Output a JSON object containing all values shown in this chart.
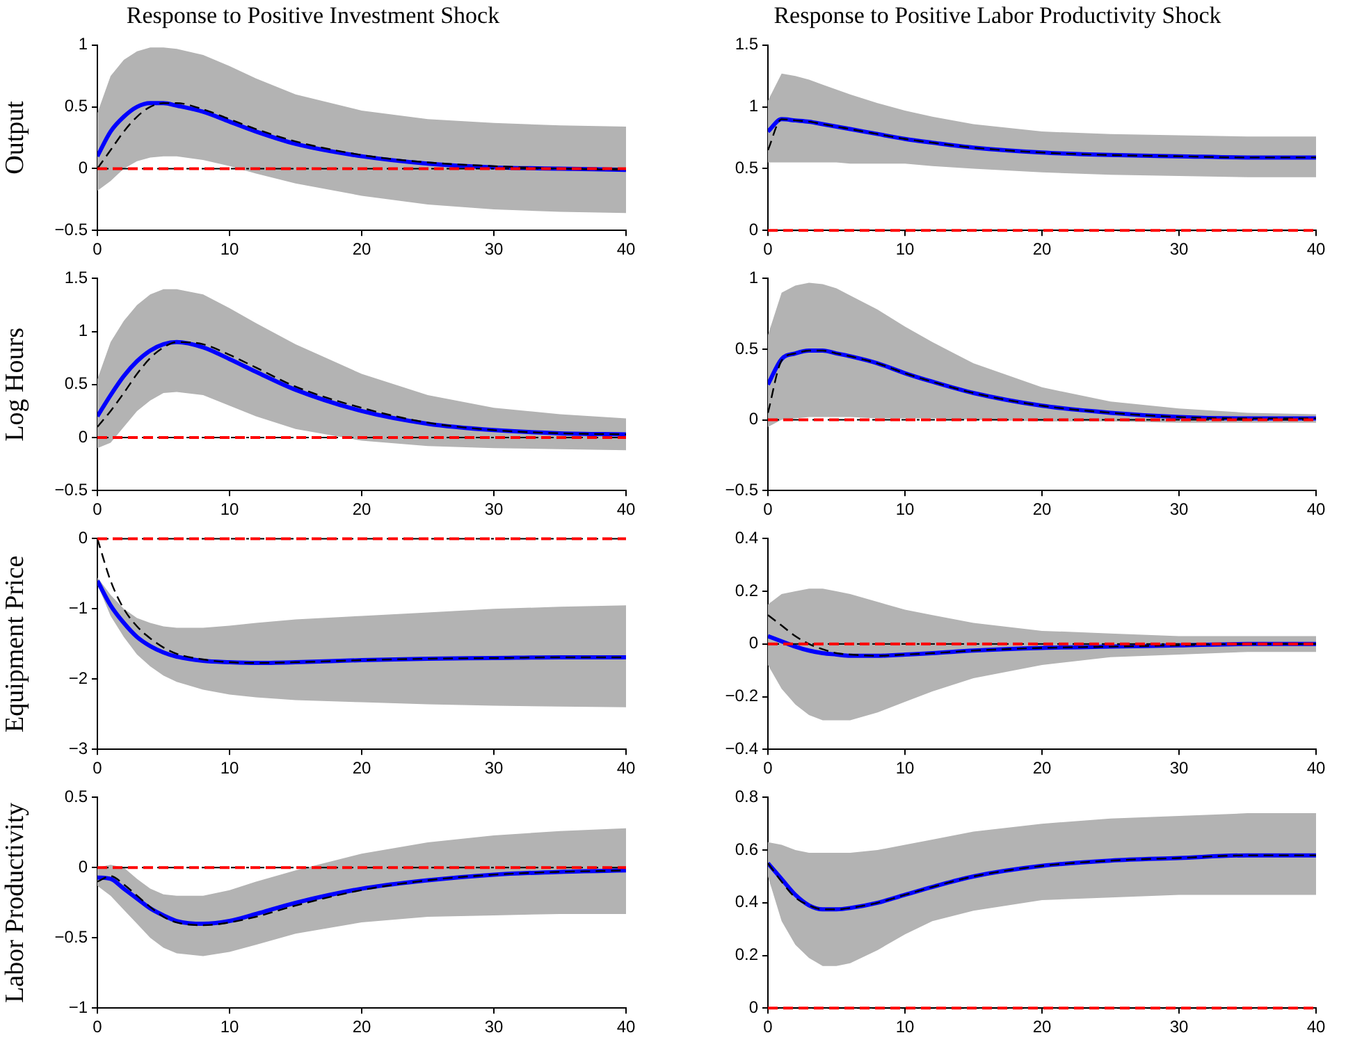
{
  "chart_data": [
    {
      "type": "line",
      "title": "Response to Positive Investment Shock",
      "ylabel": "Output",
      "xlim": [
        0,
        40
      ],
      "xticks": [
        0,
        10,
        20,
        30,
        40
      ],
      "ylim": [
        -0.5,
        1
      ],
      "yticks": [
        -0.5,
        0,
        0.5,
        1
      ],
      "grid": false,
      "legend": false,
      "x": [
        0,
        1,
        2,
        3,
        4,
        5,
        6,
        8,
        10,
        12,
        15,
        20,
        25,
        30,
        35,
        40
      ],
      "series": [
        {
          "color": "#0000ff",
          "values": [
            0.1,
            0.3,
            0.42,
            0.5,
            0.53,
            0.53,
            0.51,
            0.46,
            0.38,
            0.3,
            0.2,
            0.1,
            0.04,
            0.01,
            0.0,
            -0.01
          ],
          "lower": [
            -0.18,
            -0.1,
            0.0,
            0.06,
            0.09,
            0.1,
            0.1,
            0.07,
            0.02,
            -0.04,
            -0.12,
            -0.22,
            -0.29,
            -0.33,
            -0.35,
            -0.36
          ],
          "upper": [
            0.45,
            0.75,
            0.88,
            0.95,
            0.98,
            0.98,
            0.97,
            0.92,
            0.83,
            0.73,
            0.6,
            0.47,
            0.4,
            0.37,
            0.35,
            0.34
          ]
        },
        {
          "color": "#000000",
          "line_style": "dashed",
          "values": [
            0.0,
            0.15,
            0.3,
            0.42,
            0.5,
            0.53,
            0.53,
            0.48,
            0.4,
            0.32,
            0.22,
            0.11,
            0.05,
            0.02,
            0.0,
            -0.01
          ]
        }
      ],
      "ref_lines": [
        {
          "axis": "y",
          "value": 0,
          "color": "#000000",
          "line_style": "dotted"
        },
        {
          "axis": "y",
          "value": 0,
          "color": "#ff0000",
          "line_style": "dashed"
        }
      ]
    },
    {
      "type": "line",
      "title": "Response to Positive Labor Productivity Shock",
      "xlim": [
        0,
        40
      ],
      "xticks": [
        0,
        10,
        20,
        30,
        40
      ],
      "ylim": [
        0,
        1.5
      ],
      "yticks": [
        0,
        0.5,
        1,
        1.5
      ],
      "grid": false,
      "legend": false,
      "x": [
        0,
        1,
        2,
        3,
        4,
        5,
        6,
        8,
        10,
        12,
        15,
        20,
        25,
        30,
        35,
        40
      ],
      "series": [
        {
          "color": "#0000ff",
          "values": [
            0.8,
            0.9,
            0.89,
            0.88,
            0.86,
            0.84,
            0.82,
            0.78,
            0.74,
            0.71,
            0.67,
            0.63,
            0.61,
            0.6,
            0.59,
            0.59
          ],
          "lower": [
            0.55,
            0.55,
            0.55,
            0.55,
            0.55,
            0.55,
            0.54,
            0.54,
            0.54,
            0.52,
            0.5,
            0.47,
            0.45,
            0.44,
            0.43,
            0.43
          ],
          "upper": [
            1.05,
            1.27,
            1.25,
            1.22,
            1.18,
            1.14,
            1.1,
            1.03,
            0.97,
            0.92,
            0.86,
            0.8,
            0.78,
            0.77,
            0.76,
            0.76
          ]
        },
        {
          "color": "#000000",
          "line_style": "dashed",
          "values": [
            0.65,
            0.9,
            0.89,
            0.88,
            0.86,
            0.84,
            0.82,
            0.78,
            0.74,
            0.71,
            0.67,
            0.63,
            0.61,
            0.6,
            0.59,
            0.59
          ]
        }
      ],
      "ref_lines": [
        {
          "axis": "y",
          "value": 0,
          "color": "#000000",
          "line_style": "dotted"
        },
        {
          "axis": "y",
          "value": 0,
          "color": "#ff0000",
          "line_style": "dashed"
        }
      ]
    },
    {
      "type": "line",
      "ylabel": "Log Hours",
      "xlim": [
        0,
        40
      ],
      "xticks": [
        0,
        10,
        20,
        30,
        40
      ],
      "ylim": [
        -0.5,
        1.5
      ],
      "yticks": [
        -0.5,
        0,
        0.5,
        1,
        1.5
      ],
      "grid": false,
      "legend": false,
      "x": [
        0,
        1,
        2,
        3,
        4,
        5,
        6,
        8,
        10,
        12,
        15,
        20,
        25,
        30,
        35,
        40
      ],
      "series": [
        {
          "color": "#0000ff",
          "values": [
            0.2,
            0.4,
            0.58,
            0.72,
            0.82,
            0.88,
            0.9,
            0.85,
            0.74,
            0.62,
            0.45,
            0.25,
            0.13,
            0.07,
            0.04,
            0.03
          ],
          "lower": [
            -0.1,
            -0.05,
            0.1,
            0.25,
            0.35,
            0.42,
            0.43,
            0.4,
            0.3,
            0.2,
            0.08,
            -0.03,
            -0.08,
            -0.1,
            -0.11,
            -0.12
          ],
          "upper": [
            0.55,
            0.9,
            1.1,
            1.25,
            1.35,
            1.4,
            1.4,
            1.35,
            1.22,
            1.08,
            0.88,
            0.6,
            0.4,
            0.28,
            0.22,
            0.18
          ]
        },
        {
          "color": "#000000",
          "line_style": "dashed",
          "values": [
            0.1,
            0.25,
            0.42,
            0.6,
            0.75,
            0.85,
            0.9,
            0.88,
            0.78,
            0.66,
            0.48,
            0.28,
            0.14,
            0.07,
            0.04,
            0.03
          ]
        }
      ],
      "ref_lines": [
        {
          "axis": "y",
          "value": 0,
          "color": "#000000",
          "line_style": "dotted"
        },
        {
          "axis": "y",
          "value": 0,
          "color": "#ff0000",
          "line_style": "dashed"
        }
      ]
    },
    {
      "type": "line",
      "xlim": [
        0,
        40
      ],
      "xticks": [
        0,
        10,
        20,
        30,
        40
      ],
      "ylim": [
        -0.5,
        1
      ],
      "yticks": [
        -0.5,
        0,
        0.5,
        1
      ],
      "grid": false,
      "legend": false,
      "x": [
        0,
        1,
        2,
        3,
        4,
        5,
        6,
        8,
        10,
        12,
        15,
        20,
        25,
        30,
        35,
        40
      ],
      "series": [
        {
          "color": "#0000ff",
          "values": [
            0.25,
            0.43,
            0.47,
            0.49,
            0.49,
            0.47,
            0.45,
            0.4,
            0.33,
            0.27,
            0.19,
            0.1,
            0.05,
            0.02,
            0.01,
            0.01
          ],
          "lower": [
            -0.05,
            0.0,
            0.01,
            0.02,
            0.02,
            0.02,
            0.02,
            0.01,
            0.01,
            0.01,
            0.0,
            -0.01,
            -0.01,
            -0.02,
            -0.02,
            -0.02
          ],
          "upper": [
            0.6,
            0.9,
            0.95,
            0.97,
            0.96,
            0.93,
            0.88,
            0.78,
            0.66,
            0.55,
            0.4,
            0.23,
            0.13,
            0.08,
            0.05,
            0.04
          ]
        },
        {
          "color": "#000000",
          "line_style": "dashed",
          "values": [
            0.05,
            0.42,
            0.47,
            0.49,
            0.49,
            0.47,
            0.45,
            0.4,
            0.33,
            0.27,
            0.19,
            0.1,
            0.05,
            0.02,
            0.01,
            0.01
          ]
        }
      ],
      "ref_lines": [
        {
          "axis": "y",
          "value": 0,
          "color": "#000000",
          "line_style": "dotted"
        },
        {
          "axis": "y",
          "value": 0,
          "color": "#ff0000",
          "line_style": "dashed"
        }
      ]
    },
    {
      "type": "line",
      "ylabel": "Equipment Price",
      "xlim": [
        0,
        40
      ],
      "xticks": [
        0,
        10,
        20,
        30,
        40
      ],
      "ylim": [
        -3,
        0
      ],
      "yticks": [
        -3,
        -2,
        -1,
        0
      ],
      "grid": false,
      "legend": false,
      "x": [
        0,
        1,
        2,
        3,
        4,
        5,
        6,
        8,
        10,
        12,
        15,
        20,
        25,
        30,
        35,
        40
      ],
      "series": [
        {
          "color": "#0000ff",
          "values": [
            -0.6,
            -0.95,
            -1.2,
            -1.4,
            -1.53,
            -1.62,
            -1.68,
            -1.74,
            -1.76,
            -1.77,
            -1.76,
            -1.73,
            -1.71,
            -1.7,
            -1.69,
            -1.69
          ],
          "lower": [
            -0.65,
            -1.1,
            -1.4,
            -1.65,
            -1.82,
            -1.95,
            -2.04,
            -2.15,
            -2.22,
            -2.26,
            -2.3,
            -2.33,
            -2.36,
            -2.38,
            -2.39,
            -2.4
          ],
          "upper": [
            -0.55,
            -0.8,
            -1.0,
            -1.13,
            -1.2,
            -1.25,
            -1.27,
            -1.27,
            -1.24,
            -1.2,
            -1.15,
            -1.1,
            -1.05,
            -1.0,
            -0.97,
            -0.95
          ]
        },
        {
          "color": "#000000",
          "line_style": "dashed",
          "values": [
            0.0,
            -0.6,
            -1.0,
            -1.25,
            -1.42,
            -1.55,
            -1.64,
            -1.72,
            -1.76,
            -1.77,
            -1.76,
            -1.73,
            -1.71,
            -1.7,
            -1.69,
            -1.69
          ]
        }
      ],
      "ref_lines": [
        {
          "axis": "y",
          "value": 0,
          "color": "#000000",
          "line_style": "dotted"
        },
        {
          "axis": "y",
          "value": 0,
          "color": "#ff0000",
          "line_style": "dashed"
        }
      ]
    },
    {
      "type": "line",
      "xlim": [
        0,
        40
      ],
      "xticks": [
        0,
        10,
        20,
        30,
        40
      ],
      "ylim": [
        -0.4,
        0.4
      ],
      "yticks": [
        -0.4,
        -0.2,
        0,
        0.2,
        0.4
      ],
      "grid": false,
      "legend": false,
      "x": [
        0,
        1,
        2,
        3,
        4,
        5,
        6,
        8,
        10,
        12,
        15,
        20,
        25,
        30,
        35,
        40
      ],
      "series": [
        {
          "color": "#0000ff",
          "values": [
            0.03,
            0.01,
            -0.01,
            -0.025,
            -0.035,
            -0.04,
            -0.045,
            -0.045,
            -0.04,
            -0.035,
            -0.025,
            -0.015,
            -0.01,
            -0.005,
            0.0,
            0.0
          ],
          "lower": [
            -0.08,
            -0.17,
            -0.23,
            -0.27,
            -0.29,
            -0.29,
            -0.29,
            -0.26,
            -0.22,
            -0.18,
            -0.13,
            -0.08,
            -0.05,
            -0.04,
            -0.03,
            -0.03
          ],
          "upper": [
            0.15,
            0.19,
            0.2,
            0.21,
            0.21,
            0.2,
            0.19,
            0.16,
            0.13,
            0.11,
            0.08,
            0.05,
            0.04,
            0.03,
            0.03,
            0.03
          ]
        },
        {
          "color": "#000000",
          "line_style": "dashed",
          "values": [
            0.11,
            0.07,
            0.03,
            0.0,
            -0.02,
            -0.035,
            -0.04,
            -0.045,
            -0.04,
            -0.035,
            -0.025,
            -0.015,
            -0.01,
            -0.005,
            0.0,
            0.0
          ]
        }
      ],
      "ref_lines": [
        {
          "axis": "y",
          "value": 0,
          "color": "#000000",
          "line_style": "dotted"
        },
        {
          "axis": "y",
          "value": 0,
          "color": "#ff0000",
          "line_style": "dashed"
        }
      ]
    },
    {
      "type": "line",
      "ylabel": "Labor Productivity",
      "xlim": [
        0,
        40
      ],
      "xticks": [
        0,
        10,
        20,
        30,
        40
      ],
      "ylim": [
        -1,
        0.5
      ],
      "yticks": [
        -1,
        -0.5,
        0,
        0.5
      ],
      "grid": false,
      "legend": false,
      "x": [
        0,
        1,
        2,
        3,
        4,
        5,
        6,
        8,
        10,
        12,
        15,
        20,
        25,
        30,
        35,
        40
      ],
      "series": [
        {
          "color": "#0000ff",
          "values": [
            -0.07,
            -0.08,
            -0.15,
            -0.22,
            -0.29,
            -0.34,
            -0.38,
            -0.4,
            -0.38,
            -0.33,
            -0.25,
            -0.15,
            -0.09,
            -0.05,
            -0.03,
            -0.02
          ],
          "lower": [
            -0.13,
            -0.2,
            -0.3,
            -0.4,
            -0.5,
            -0.57,
            -0.61,
            -0.63,
            -0.6,
            -0.55,
            -0.47,
            -0.39,
            -0.35,
            -0.34,
            -0.33,
            -0.33
          ],
          "upper": [
            0.0,
            0.02,
            0.0,
            -0.08,
            -0.15,
            -0.19,
            -0.2,
            -0.2,
            -0.16,
            -0.1,
            -0.02,
            0.1,
            0.18,
            0.23,
            0.26,
            0.28
          ]
        },
        {
          "color": "#000000",
          "line_style": "dashed",
          "values": [
            -0.1,
            -0.06,
            -0.12,
            -0.2,
            -0.28,
            -0.35,
            -0.39,
            -0.41,
            -0.39,
            -0.35,
            -0.27,
            -0.16,
            -0.09,
            -0.05,
            -0.03,
            -0.02
          ]
        }
      ],
      "ref_lines": [
        {
          "axis": "y",
          "value": 0,
          "color": "#000000",
          "line_style": "dotted"
        },
        {
          "axis": "y",
          "value": 0,
          "color": "#ff0000",
          "line_style": "dashed"
        }
      ]
    },
    {
      "type": "line",
      "xlim": [
        0,
        40
      ],
      "xticks": [
        0,
        10,
        20,
        30,
        40
      ],
      "ylim": [
        0,
        0.8
      ],
      "yticks": [
        0,
        0.2,
        0.4,
        0.6,
        0.8
      ],
      "grid": false,
      "legend": false,
      "x": [
        0,
        1,
        2,
        3,
        4,
        5,
        6,
        8,
        10,
        12,
        15,
        20,
        25,
        30,
        35,
        40
      ],
      "series": [
        {
          "color": "#0000ff",
          "values": [
            0.55,
            0.49,
            0.43,
            0.39,
            0.375,
            0.375,
            0.38,
            0.4,
            0.43,
            0.46,
            0.5,
            0.54,
            0.56,
            0.57,
            0.58,
            0.58
          ],
          "lower": [
            0.5,
            0.33,
            0.24,
            0.19,
            0.16,
            0.16,
            0.17,
            0.22,
            0.28,
            0.33,
            0.37,
            0.41,
            0.42,
            0.43,
            0.43,
            0.43
          ],
          "upper": [
            0.63,
            0.62,
            0.6,
            0.59,
            0.59,
            0.59,
            0.59,
            0.6,
            0.62,
            0.64,
            0.67,
            0.7,
            0.72,
            0.73,
            0.74,
            0.74
          ]
        },
        {
          "color": "#000000",
          "line_style": "dashed",
          "values": [
            0.55,
            0.48,
            0.42,
            0.39,
            0.375,
            0.375,
            0.38,
            0.4,
            0.43,
            0.46,
            0.5,
            0.54,
            0.56,
            0.57,
            0.58,
            0.58
          ]
        }
      ],
      "ref_lines": [
        {
          "axis": "y",
          "value": 0,
          "color": "#000000",
          "line_style": "dotted"
        },
        {
          "axis": "y",
          "value": 0,
          "color": "#ff0000",
          "line_style": "dashed"
        }
      ]
    }
  ]
}
